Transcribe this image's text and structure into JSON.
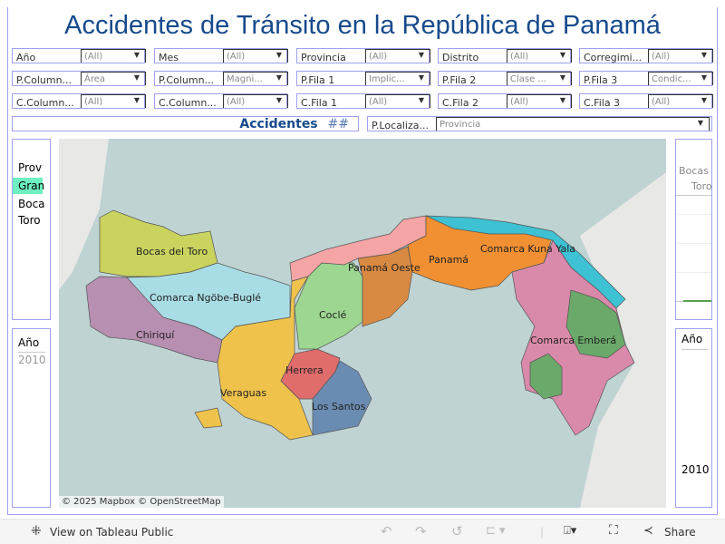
{
  "title": "Accidentes de Tránsito en la República de Panamá",
  "filters": [
    [
      {
        "label": "Año",
        "value": "(All)"
      },
      {
        "label": "Mes",
        "value": "(All)"
      },
      {
        "label": "Provincia",
        "value": "(All)"
      },
      {
        "label": "Distrito",
        "value": "(All)"
      },
      {
        "label": "Corregimi...",
        "value": "(All)"
      }
    ],
    [
      {
        "label": "P.Column...",
        "value": "Área"
      },
      {
        "label": "P.Column...",
        "value": "Magni..."
      },
      {
        "label": "P.Fila 1",
        "value": "Implic..."
      },
      {
        "label": "P.Fila 2",
        "value": "Clase ..."
      },
      {
        "label": "P.Fila 3",
        "value": "Condic..."
      }
    ],
    [
      {
        "label": "C.Column...",
        "value": "(All)"
      },
      {
        "label": "C.Column...",
        "value": "(All)"
      },
      {
        "label": "C.Fila 1",
        "value": "(All)"
      },
      {
        "label": "C.Fila 2",
        "value": "(All)"
      },
      {
        "label": "C.Fila 3",
        "value": "(All)"
      }
    ]
  ],
  "accidentes": {
    "label": "Accidentes",
    "value": "##"
  },
  "localizacion": {
    "label": "P.Localiza...",
    "value": "Provincia"
  },
  "left_panel": {
    "header": "Prov",
    "highlight": "Gran",
    "items": [
      "Boca",
      "Toro"
    ]
  },
  "left_year": {
    "header": "Año",
    "value": "2010"
  },
  "right_panel": {
    "header1": "Bocas d",
    "header2": "Toro"
  },
  "right_year": {
    "header": "Año",
    "value": "2010"
  },
  "map": {
    "attribution": "© 2025 Mapbox © OpenStreetMap",
    "provinces": [
      "Bocas del Toro",
      "Comarca Ngöbe-Buglé",
      "Chiriquí",
      "Veraguas",
      "Coclé",
      "Herrera",
      "Los Santos",
      "Panamá Oeste",
      "Panamá",
      "Comarca Kuna Yala",
      "Comarca Emberá"
    ],
    "colors": {
      "sea": "#bfd3d3",
      "land": "#e8e8e6"
    }
  },
  "toolbar": {
    "view": "View on Tableau Public",
    "share": "Share"
  }
}
